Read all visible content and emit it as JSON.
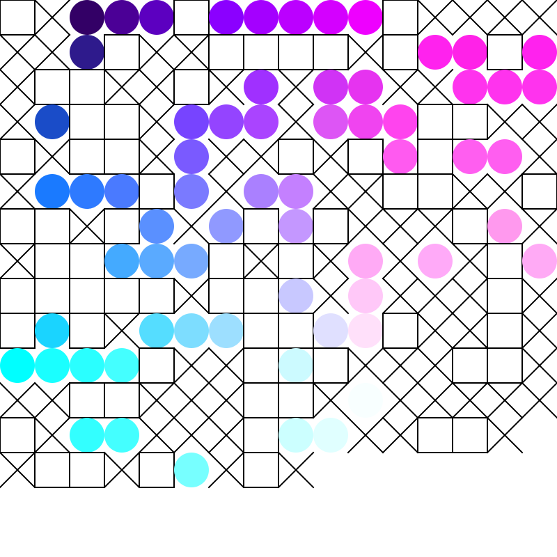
{
  "grid": {
    "rows": [
      [
        "s",
        "x",
        "#330066",
        "#4b0096",
        "#5c00c0",
        "s",
        "#8b00ff",
        "#a400ff",
        "#bb00ff",
        "#d400ff",
        "#ee00ff",
        "s",
        "x",
        "x",
        "x",
        "x"
      ],
      [
        "x",
        "x",
        "#2e1a8c",
        "s",
        "x",
        "x",
        "s",
        "s",
        "s",
        "s",
        "x",
        "s",
        "#ff22ee",
        "#ff22e8",
        "s",
        "#ff22ee"
      ],
      [
        "x",
        "s",
        "s",
        "x",
        "x",
        "s",
        "x",
        "#a030ff",
        "x",
        "#d033f5",
        "#e633f0",
        "x",
        "x",
        "#ff33ee",
        "#ff33ee",
        "#ff33ee"
      ],
      [
        "x",
        "#1a4cc8",
        "s",
        "s",
        "x",
        "#7744ff",
        "#9444ff",
        "#aa44ff",
        "x",
        "#dd55f5",
        "#f044f0",
        "#ff44ee",
        "s",
        "s",
        "x",
        "x"
      ],
      [
        "s",
        "x",
        "s",
        "s",
        "x",
        "#7a5aff",
        "x",
        "x",
        "s",
        "x",
        "s",
        "#ff5af0",
        "s",
        "#ff5ef0",
        "#ff5ef0",
        "x"
      ],
      [
        "x",
        "#1a7aff",
        "#2e7aff",
        "#4a7aff",
        "s",
        "#7a7aff",
        "x",
        "#aa80ff",
        "#c480ff",
        "x",
        "x",
        "s",
        "s",
        "x",
        "x",
        "s"
      ],
      [
        "s",
        "s",
        "x",
        "s",
        "#5a90ff",
        "x",
        "#9099ff",
        "s",
        "#c497ff",
        "s",
        "x",
        "x",
        "x",
        "s",
        "#ff99ee",
        "x"
      ],
      [
        "x",
        "s",
        "s",
        "#44aaff",
        "#5aaaff",
        "#77aaff",
        "s",
        "x",
        "s",
        "x",
        "#ffaaf5",
        "x",
        "#ffaaf8",
        "x",
        "s",
        "#ffaaf5"
      ],
      [
        "s",
        "s",
        "s",
        "s",
        "s",
        "x",
        "s",
        "s",
        "#c8c8ff",
        "x",
        "#ffc8f8",
        "x",
        "x",
        "x",
        "s",
        "x"
      ],
      [
        "s",
        "#1ad4ff",
        "s",
        "x",
        "#55ddff",
        "#7dddff",
        "#9ddfff",
        "s",
        "s",
        "#e0e0ff",
        "#ffe0fa",
        "s",
        "x",
        "x",
        "s",
        "x"
      ],
      [
        "#00ffff",
        "#1affff",
        "#2affff",
        "#44ffff",
        "s",
        "x",
        "x",
        "s",
        "#ccfaff",
        "s",
        "x",
        "x",
        "x",
        "s",
        "s",
        "x"
      ],
      [
        "x",
        "x",
        "s",
        "s",
        "x",
        "x",
        "x",
        "s",
        "s",
        "x",
        "#f8ffff",
        "x",
        "x",
        "x",
        "x",
        "x"
      ],
      [
        "s",
        "x",
        "#33ffff",
        "#44ffff",
        "x",
        "x",
        "x",
        "s",
        "#ccffff",
        "#e0ffff",
        "x",
        "x",
        "s",
        "s",
        "x"
      ],
      [
        "x",
        "s",
        "s",
        "x",
        "s",
        "#77ffff",
        "x",
        "s",
        "x"
      ]
    ]
  }
}
